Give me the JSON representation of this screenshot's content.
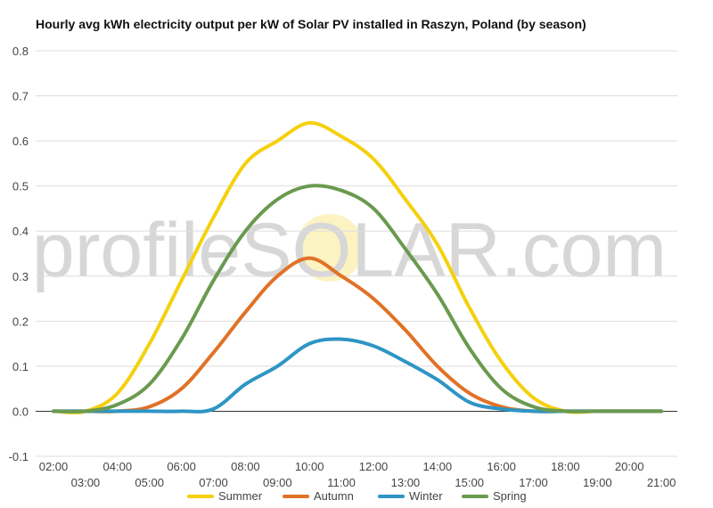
{
  "chart_data": {
    "type": "line",
    "title": "Hourly avg kWh electricity output per kW of Solar PV installed in Raszyn, Poland (by season)",
    "watermark": "profileSOLAR.com",
    "xlabel": "",
    "ylabel": "",
    "ylim": [
      -0.1,
      0.8
    ],
    "y_ticks": [
      "-0.1",
      "0.0",
      "0.1",
      "0.2",
      "0.3",
      "0.4",
      "0.5",
      "0.6",
      "0.7",
      "0.8"
    ],
    "grid": true,
    "legend_position": "bottom",
    "x": [
      "02:00",
      "03:00",
      "04:00",
      "05:00",
      "06:00",
      "07:00",
      "08:00",
      "09:00",
      "10:00",
      "11:00",
      "12:00",
      "13:00",
      "14:00",
      "15:00",
      "16:00",
      "17:00",
      "18:00",
      "19:00",
      "20:00",
      "21:00"
    ],
    "series": [
      {
        "name": "Summer",
        "color": "#f5d00f",
        "values": [
          0.0,
          0.0,
          0.04,
          0.15,
          0.29,
          0.43,
          0.55,
          0.6,
          0.64,
          0.61,
          0.56,
          0.47,
          0.37,
          0.23,
          0.11,
          0.03,
          0.0,
          0.0,
          0.0,
          0.0
        ]
      },
      {
        "name": "Autumn",
        "color": "#e07227",
        "values": [
          0.0,
          0.0,
          0.0,
          0.01,
          0.05,
          0.13,
          0.22,
          0.3,
          0.34,
          0.3,
          0.25,
          0.18,
          0.1,
          0.04,
          0.01,
          0.0,
          0.0,
          0.0,
          0.0,
          0.0
        ]
      },
      {
        "name": "Winter",
        "color": "#2e95c5",
        "values": [
          0.0,
          0.0,
          0.0,
          0.0,
          0.0,
          0.005,
          0.06,
          0.1,
          0.15,
          0.16,
          0.145,
          0.11,
          0.07,
          0.02,
          0.005,
          0.0,
          0.0,
          0.0,
          0.0,
          0.0
        ]
      },
      {
        "name": "Spring",
        "color": "#6a9a4f",
        "values": [
          0.0,
          0.0,
          0.015,
          0.06,
          0.16,
          0.29,
          0.4,
          0.47,
          0.5,
          0.49,
          0.45,
          0.36,
          0.26,
          0.14,
          0.05,
          0.01,
          0.0,
          0.0,
          0.0,
          0.0
        ]
      }
    ]
  }
}
